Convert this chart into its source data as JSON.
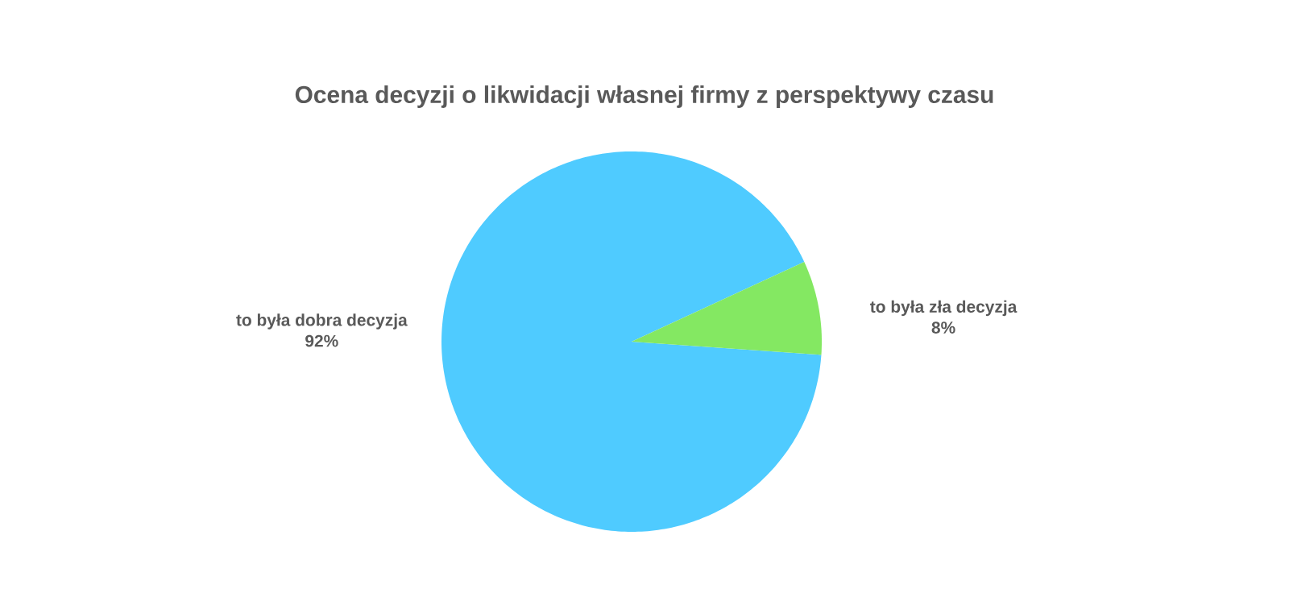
{
  "chart_data": {
    "type": "pie",
    "title": "Ocena decyzji o likwidacji  własnej firmy z perspektywy czasu",
    "categories": [
      "to była dobra decyzja",
      "to była zła decyzja"
    ],
    "values": [
      92,
      8
    ],
    "value_labels": [
      "92%",
      "8%"
    ],
    "colors": [
      "#4fcbff",
      "#84e862"
    ],
    "legend": false
  }
}
